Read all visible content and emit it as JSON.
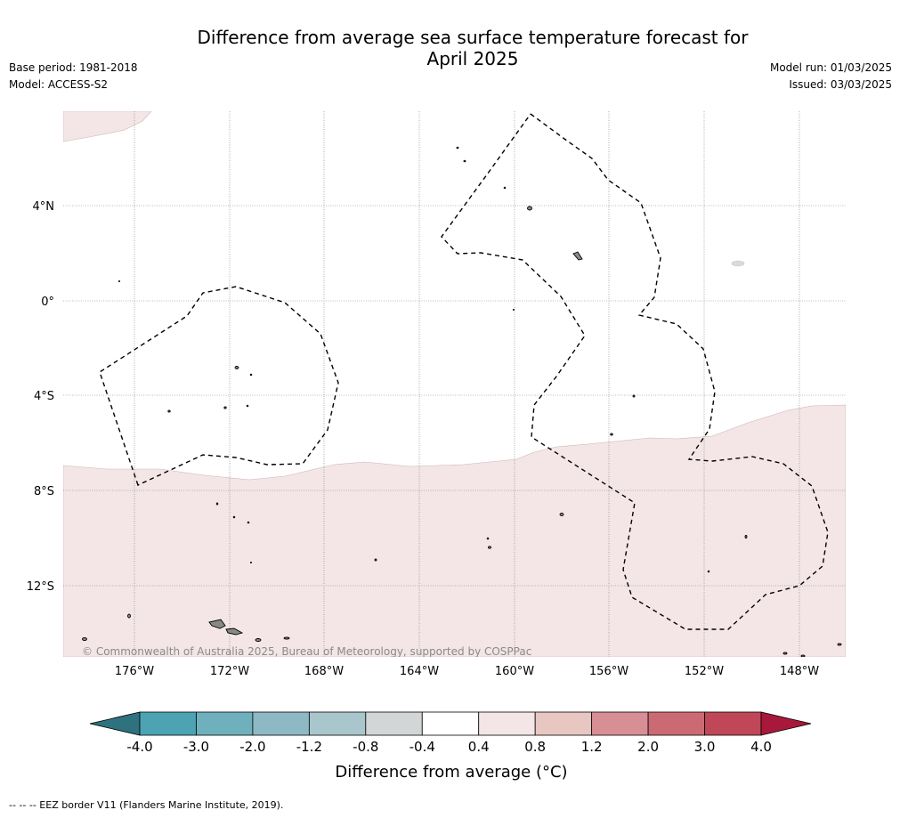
{
  "title_line1": "Difference from average sea surface temperature forecast for",
  "title_line2": "April 2025",
  "base_period": "Base period: 1981-2018",
  "model": "Model: ACCESS-S2",
  "model_run": "Model run: 01/03/2025",
  "issued": "Issued: 03/03/2025",
  "map": {
    "lat_labels": [
      "4°N",
      "0°",
      "4°S",
      "8°S",
      "12°S"
    ],
    "lon_labels": [
      "176°W",
      "172°W",
      "168°W",
      "164°W",
      "160°W",
      "156°W",
      "152°W",
      "148°W"
    ],
    "copyright": "© Commonwealth of Australia 2025, Bureau of Meteorology, supported by COSPPac",
    "anomaly_fill_color": "#f4e6e6",
    "eez_line_style": "dashed"
  },
  "colorbar": {
    "ticks": [
      "-4.0",
      "-3.0",
      "-2.0",
      "-1.2",
      "-0.8",
      "-0.4",
      "0.4",
      "0.8",
      "1.2",
      "2.0",
      "3.0",
      "4.0"
    ],
    "colors": [
      "#2e7280",
      "#4ca3b3",
      "#6fb0bd",
      "#8db9c4",
      "#a9c6cc",
      "#d2d6d7",
      "#ffffff",
      "#f4e6e6",
      "#e8c6c2",
      "#d88e95",
      "#cc6a74",
      "#c04757",
      "#a8183a"
    ],
    "title": "Difference from average (°C)"
  },
  "footnote": "--  --  -- EEZ border V11 (Flanders Marine Institute, 2019)."
}
